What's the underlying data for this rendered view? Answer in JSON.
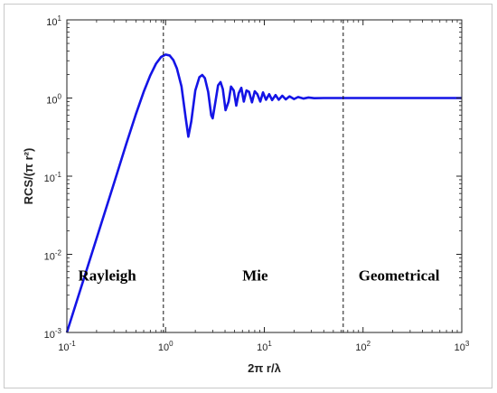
{
  "chart_data": {
    "type": "line",
    "title": "",
    "xlabel": "2π r/λ",
    "ylabel": "RCS/(π r²)",
    "x_scale": "log",
    "y_scale": "log",
    "xlim": [
      0.1,
      1000
    ],
    "ylim": [
      0.001,
      10
    ],
    "grid": false,
    "x_ticks": [
      {
        "base": "10",
        "exp": "-1",
        "value": 0.1
      },
      {
        "base": "10",
        "exp": "0",
        "value": 1
      },
      {
        "base": "10",
        "exp": "1",
        "value": 10
      },
      {
        "base": "10",
        "exp": "2",
        "value": 100
      },
      {
        "base": "10",
        "exp": "3",
        "value": 1000
      }
    ],
    "y_ticks": [
      {
        "base": "10",
        "exp": "-3",
        "value": 0.001
      },
      {
        "base": "10",
        "exp": "-2",
        "value": 0.01
      },
      {
        "base": "10",
        "exp": "-1",
        "value": 0.1
      },
      {
        "base": "10",
        "exp": "0",
        "value": 1
      },
      {
        "base": "10",
        "exp": "1",
        "value": 10
      }
    ],
    "series": [
      {
        "color": "#1414e6",
        "points": [
          [
            0.1,
            0.001
          ],
          [
            0.2,
            0.016
          ],
          [
            0.3,
            0.081
          ],
          [
            0.4,
            0.26
          ],
          [
            0.5,
            0.62
          ],
          [
            0.6,
            1.2
          ],
          [
            0.7,
            1.95
          ],
          [
            0.8,
            2.75
          ],
          [
            0.9,
            3.35
          ],
          [
            1.0,
            3.6
          ],
          [
            1.1,
            3.5
          ],
          [
            1.2,
            3.05
          ],
          [
            1.3,
            2.4
          ],
          [
            1.45,
            1.4
          ],
          [
            1.6,
            0.55
          ],
          [
            1.7,
            0.32
          ],
          [
            1.82,
            0.5
          ],
          [
            2.0,
            1.25
          ],
          [
            2.2,
            1.85
          ],
          [
            2.35,
            1.97
          ],
          [
            2.5,
            1.8
          ],
          [
            2.7,
            1.2
          ],
          [
            2.9,
            0.6
          ],
          [
            3.0,
            0.55
          ],
          [
            3.2,
            0.9
          ],
          [
            3.4,
            1.45
          ],
          [
            3.6,
            1.6
          ],
          [
            3.8,
            1.3
          ],
          [
            4.05,
            0.7
          ],
          [
            4.35,
            0.9
          ],
          [
            4.6,
            1.4
          ],
          [
            4.9,
            1.25
          ],
          [
            5.2,
            0.8
          ],
          [
            5.5,
            1.15
          ],
          [
            5.85,
            1.35
          ],
          [
            6.2,
            0.9
          ],
          [
            6.6,
            1.25
          ],
          [
            7.0,
            1.2
          ],
          [
            7.5,
            0.88
          ],
          [
            8.0,
            1.22
          ],
          [
            8.5,
            1.12
          ],
          [
            9.1,
            0.9
          ],
          [
            9.7,
            1.18
          ],
          [
            10.4,
            0.95
          ],
          [
            11.2,
            1.12
          ],
          [
            12.0,
            0.94
          ],
          [
            13.0,
            1.09
          ],
          [
            14.0,
            0.95
          ],
          [
            15.2,
            1.07
          ],
          [
            16.5,
            0.96
          ],
          [
            18.0,
            1.05
          ],
          [
            20.0,
            0.97
          ],
          [
            22.0,
            1.03
          ],
          [
            25.0,
            0.985
          ],
          [
            28.0,
            1.015
          ],
          [
            32.0,
            0.995
          ],
          [
            40.0,
            1.0
          ],
          [
            60.0,
            1.0
          ],
          [
            100.0,
            1.0
          ],
          [
            1000.0,
            1.0
          ]
        ]
      }
    ],
    "vertical_lines": [
      {
        "x": 0.95,
        "style": "dashed"
      },
      {
        "x": 63,
        "style": "dashed"
      }
    ],
    "annotations": [
      {
        "text": "Rayleigh",
        "x": 0.13,
        "y": 0.0046
      },
      {
        "text": "Mie",
        "x": 6.0,
        "y": 0.0046
      },
      {
        "text": "Geometrical",
        "x": 90,
        "y": 0.0046
      }
    ]
  }
}
